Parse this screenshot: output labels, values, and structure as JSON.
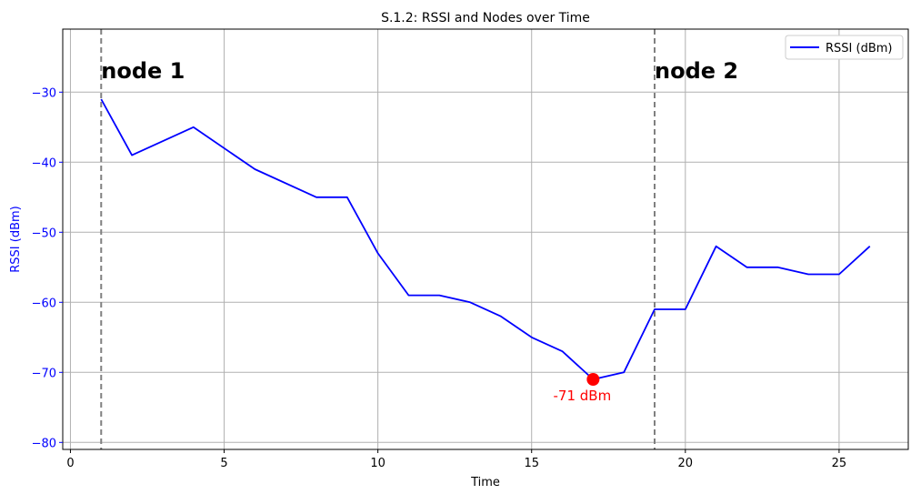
{
  "chart_data": {
    "type": "line",
    "title": "S.1.2: RSSI and Nodes over Time",
    "xlabel": "Time",
    "ylabel": "RSSI (dBm)",
    "xlim": [
      -0.25,
      27.25
    ],
    "ylim": [
      -81,
      -21
    ],
    "xticks": [
      0,
      5,
      10,
      15,
      20,
      25
    ],
    "yticks": [
      -30,
      -40,
      -50,
      -60,
      -70,
      -80
    ],
    "xtick_labels": [
      "0",
      "5",
      "10",
      "15",
      "20",
      "25"
    ],
    "ytick_labels": [
      "−30",
      "−40",
      "−50",
      "−60",
      "−70",
      "−80"
    ],
    "grid": true,
    "legend_position": "top-right",
    "series": [
      {
        "name": "RSSI (dBm)",
        "color": "#0000ff",
        "x": [
          1,
          2,
          4,
          6,
          8,
          9,
          10,
          11,
          12,
          13,
          14,
          15,
          16,
          17,
          18,
          19,
          20,
          21,
          22,
          23,
          24,
          25,
          26
        ],
        "y": [
          -31,
          -39,
          -35,
          -41,
          -45,
          -45,
          -53,
          -59,
          -59,
          -60,
          -62,
          -65,
          -67,
          -71,
          -70,
          -61,
          -61,
          -52,
          -55,
          -55,
          -56,
          -56,
          -52
        ]
      }
    ],
    "vlines": [
      {
        "x": 1,
        "label": "node 1",
        "color": "#808080"
      },
      {
        "x": 19,
        "label": "node 2",
        "color": "#808080"
      }
    ],
    "marker": {
      "x": 17,
      "y": -71,
      "label": "-71 dBm",
      "color": "#ff0000"
    }
  }
}
